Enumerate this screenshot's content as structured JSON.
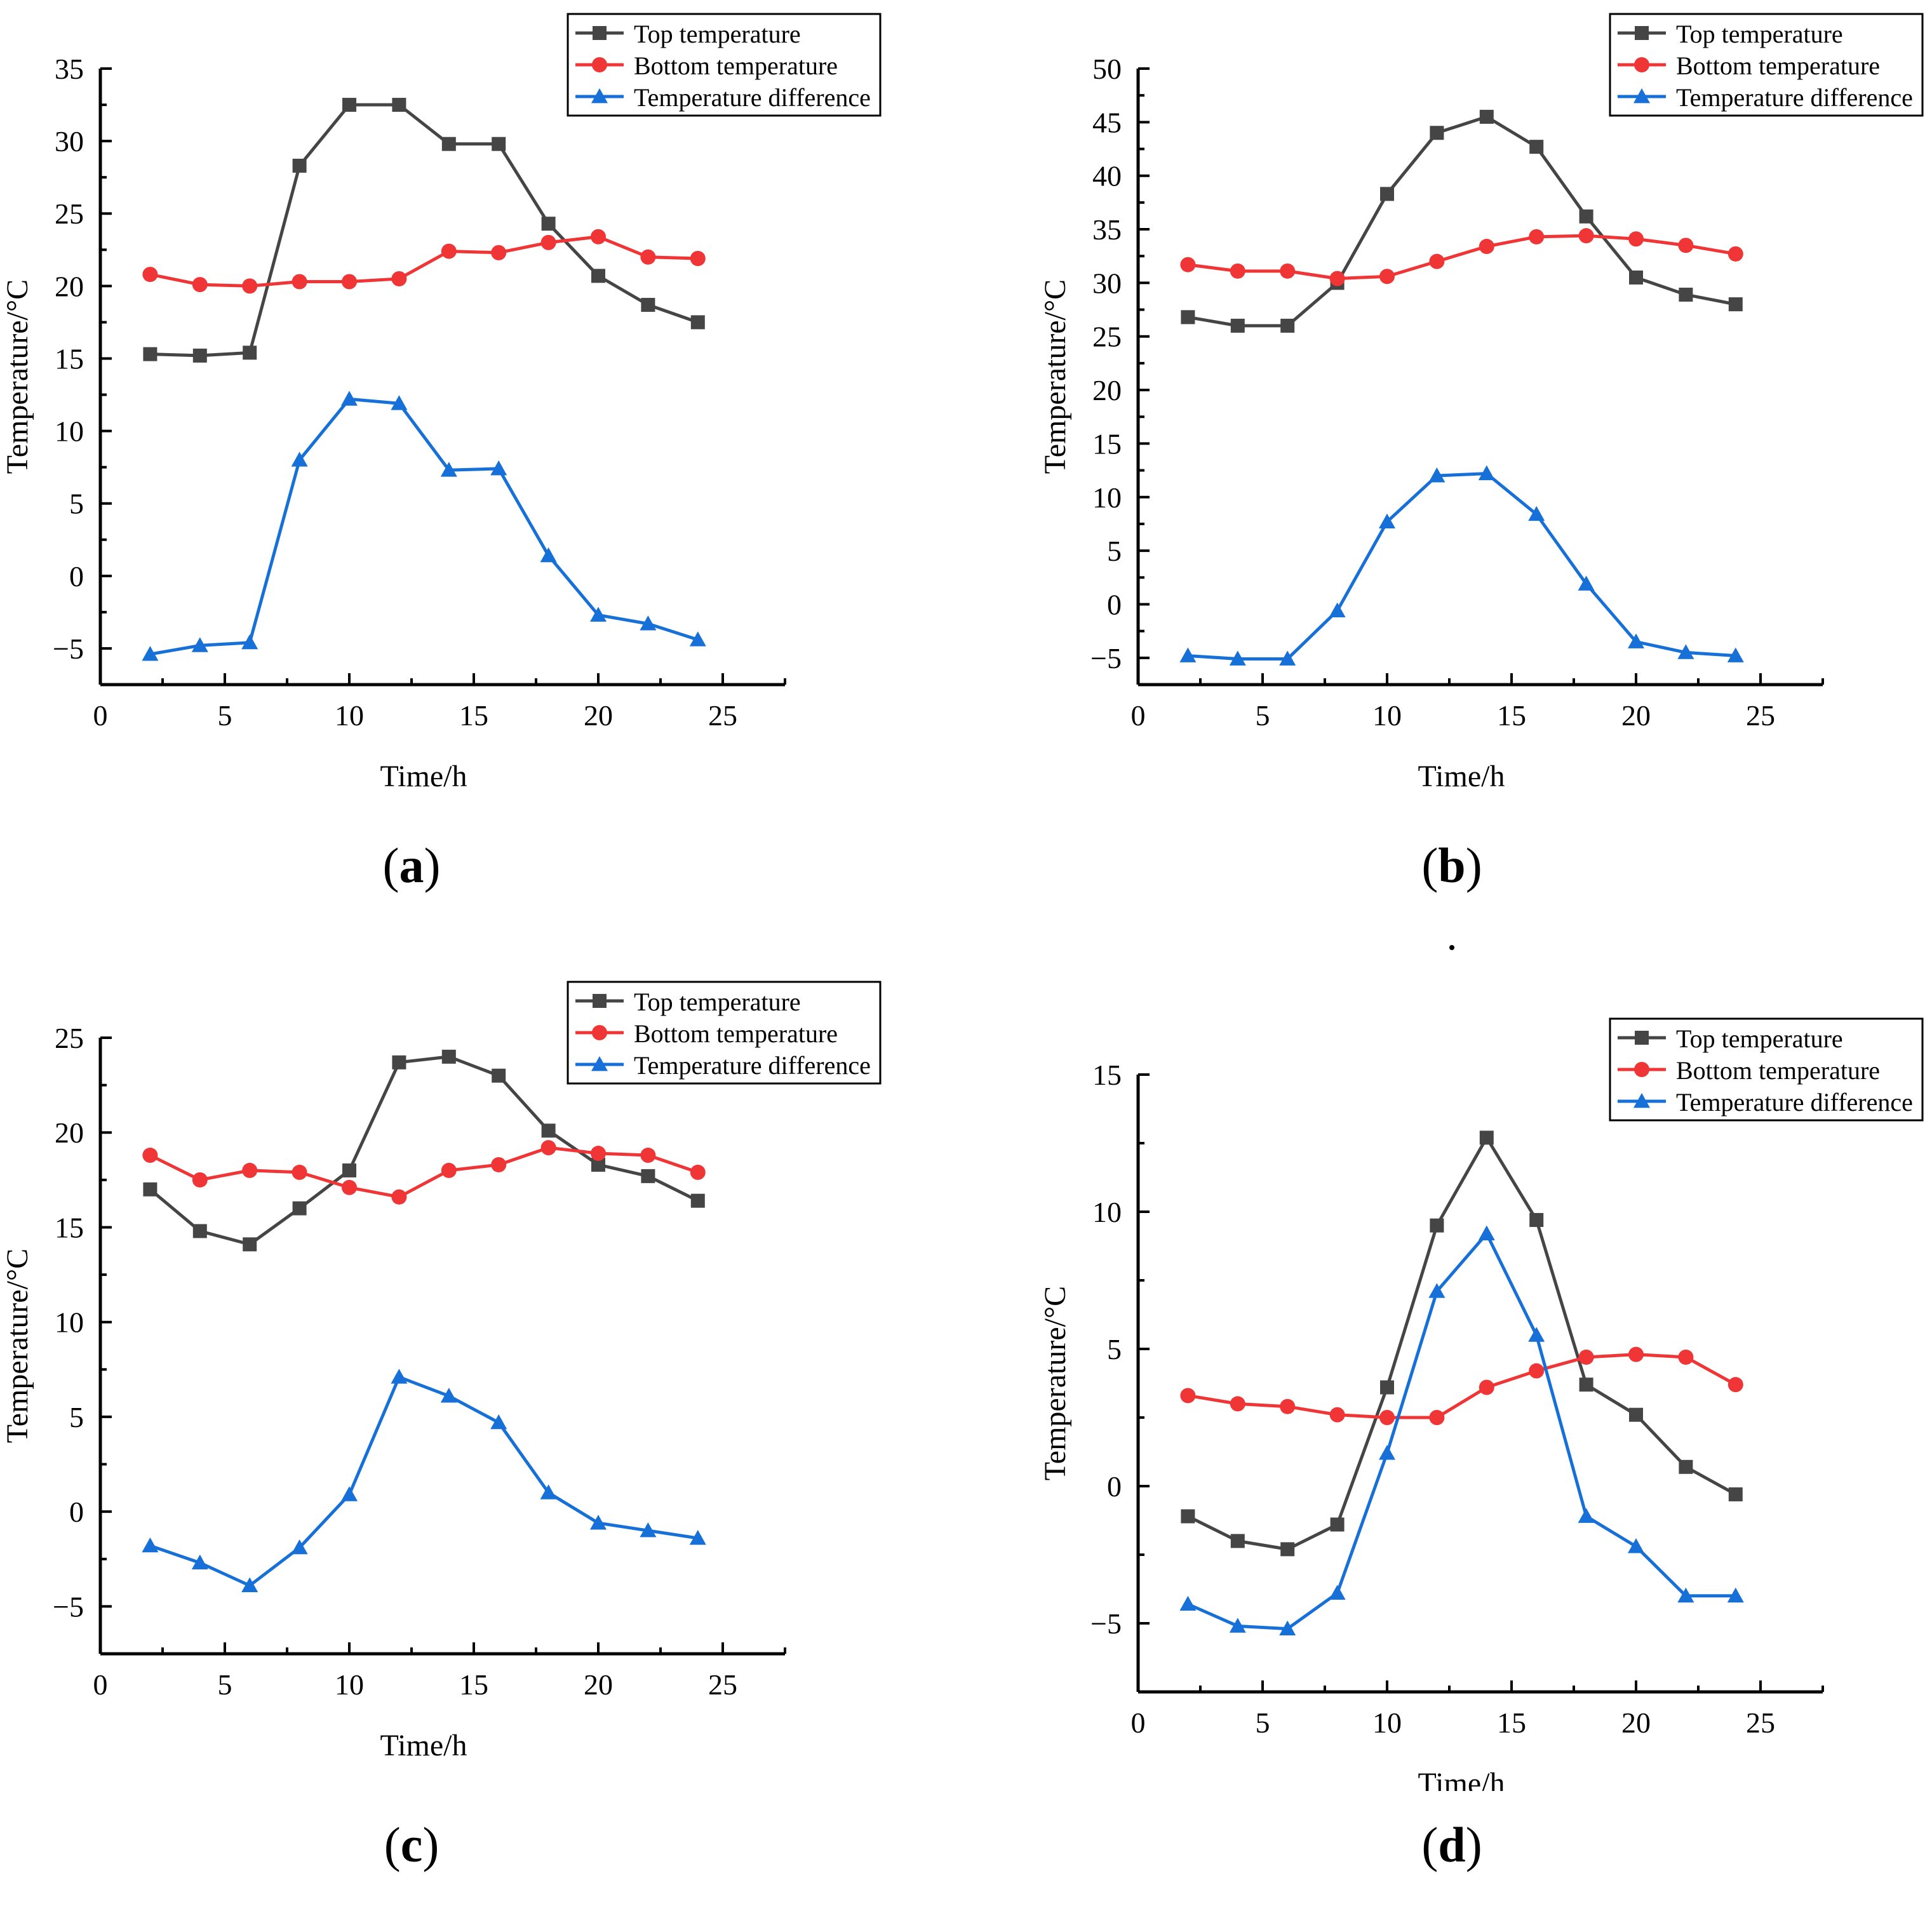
{
  "chart_data": [
    {
      "panel": "(a)",
      "label_letter": "a",
      "type": "line",
      "xlabel": "Time/h",
      "ylabel": "Temperature/°C",
      "xlim": [
        0,
        27.5
      ],
      "ylim": [
        -7.5,
        35
      ],
      "xticks": [
        0,
        5,
        10,
        15,
        20,
        25
      ],
      "yticks": [
        -5,
        0,
        5,
        10,
        15,
        20,
        25,
        30,
        35
      ],
      "legend_position": "top-right",
      "x": [
        2,
        4,
        6,
        8,
        10,
        12,
        14,
        16,
        18,
        20,
        22,
        24
      ],
      "series": [
        {
          "name": "Top temperature",
          "marker": "square",
          "color": "#454545",
          "values": [
            15.3,
            15.2,
            15.4,
            28.3,
            32.5,
            32.5,
            29.8,
            29.8,
            24.3,
            20.7,
            18.7,
            17.5
          ]
        },
        {
          "name": "Bottom temperature",
          "marker": "circle",
          "color": "#ef3535",
          "values": [
            20.8,
            20.1,
            20.0,
            20.3,
            20.3,
            20.5,
            22.4,
            22.3,
            23.0,
            23.4,
            22.0,
            21.9
          ]
        },
        {
          "name": "Temperature difference",
          "marker": "triangle",
          "color": "#1670d8",
          "values": [
            -5.4,
            -4.8,
            -4.6,
            8.0,
            12.2,
            11.9,
            7.3,
            7.4,
            1.4,
            -2.7,
            -3.3,
            -4.4
          ]
        }
      ]
    },
    {
      "panel": "(b)",
      "label_letter": "b",
      "type": "line",
      "xlabel": "Time/h",
      "ylabel": "Temperature/°C",
      "xlim": [
        0,
        27.5
      ],
      "ylim": [
        -7.5,
        50
      ],
      "xticks": [
        0,
        5,
        10,
        15,
        20,
        25
      ],
      "yticks": [
        -5,
        0,
        5,
        10,
        15,
        20,
        25,
        30,
        35,
        40,
        45,
        50
      ],
      "legend_position": "top-right",
      "x": [
        2,
        4,
        6,
        8,
        10,
        12,
        14,
        16,
        18,
        20,
        22,
        24
      ],
      "series": [
        {
          "name": "Top temperature",
          "marker": "square",
          "color": "#454545",
          "values": [
            26.8,
            26.0,
            26.0,
            30.0,
            38.3,
            44.0,
            45.5,
            42.7,
            36.2,
            30.5,
            28.9,
            28.0
          ]
        },
        {
          "name": "Bottom temperature",
          "marker": "circle",
          "color": "#ef3535",
          "values": [
            31.7,
            31.1,
            31.1,
            30.4,
            30.6,
            32.0,
            33.4,
            34.3,
            34.4,
            34.1,
            33.5,
            32.7
          ]
        },
        {
          "name": "Temperature difference",
          "marker": "triangle",
          "color": "#1670d8",
          "values": [
            -4.8,
            -5.1,
            -5.1,
            -0.6,
            7.7,
            12.0,
            12.2,
            8.4,
            1.9,
            -3.5,
            -4.5,
            -4.8
          ]
        }
      ]
    },
    {
      "panel": "(c)",
      "label_letter": "c",
      "type": "line",
      "xlabel": "Time/h",
      "ylabel": "Temperature/°C",
      "xlim": [
        0,
        27.5
      ],
      "ylim": [
        -7.5,
        25
      ],
      "xticks": [
        0,
        5,
        10,
        15,
        20,
        25
      ],
      "yticks": [
        -5,
        0,
        5,
        10,
        15,
        20,
        25
      ],
      "legend_position": "top-right",
      "x": [
        2,
        4,
        6,
        8,
        10,
        12,
        14,
        16,
        18,
        20,
        22,
        24
      ],
      "series": [
        {
          "name": "Top temperature",
          "marker": "square",
          "color": "#454545",
          "values": [
            17.0,
            14.8,
            14.1,
            16.0,
            18.0,
            23.7,
            24.0,
            23.0,
            20.1,
            18.3,
            17.7,
            16.4
          ]
        },
        {
          "name": "Bottom temperature",
          "marker": "circle",
          "color": "#ef3535",
          "values": [
            18.8,
            17.5,
            18.0,
            17.9,
            17.1,
            16.6,
            18.0,
            18.3,
            19.2,
            18.9,
            18.8,
            17.9
          ]
        },
        {
          "name": "Temperature difference",
          "marker": "triangle",
          "color": "#1670d8",
          "values": [
            -1.8,
            -2.7,
            -3.9,
            -1.9,
            0.9,
            7.1,
            6.1,
            4.7,
            1.0,
            -0.6,
            -1.0,
            -1.4
          ]
        }
      ]
    },
    {
      "panel": "(d)",
      "label_letter": "d",
      "type": "line",
      "xlabel": "Time/h",
      "ylabel": "Temperature/°C",
      "xlim": [
        0,
        27.5
      ],
      "ylim": [
        -7.5,
        15
      ],
      "xticks": [
        0,
        5,
        10,
        15,
        20,
        25
      ],
      "yticks": [
        -5,
        0,
        5,
        10,
        15
      ],
      "legend_position": "top-right",
      "x": [
        2,
        4,
        6,
        8,
        10,
        12,
        14,
        16,
        18,
        20,
        22,
        24
      ],
      "series": [
        {
          "name": "Top temperature",
          "marker": "square",
          "color": "#454545",
          "values": [
            -1.1,
            -2.0,
            -2.3,
            -1.4,
            3.6,
            9.5,
            12.7,
            9.7,
            3.7,
            2.6,
            0.7,
            -0.3
          ]
        },
        {
          "name": "Bottom temperature",
          "marker": "circle",
          "color": "#ef3535",
          "values": [
            3.3,
            3.0,
            2.9,
            2.6,
            2.5,
            2.5,
            3.6,
            4.2,
            4.7,
            4.8,
            4.7,
            3.7
          ]
        },
        {
          "name": "Temperature difference",
          "marker": "triangle",
          "color": "#1670d8",
          "values": [
            -4.3,
            -5.1,
            -5.2,
            -3.9,
            1.2,
            7.1,
            9.2,
            5.5,
            -1.1,
            -2.2,
            -4.0,
            -4.0
          ]
        }
      ]
    }
  ]
}
